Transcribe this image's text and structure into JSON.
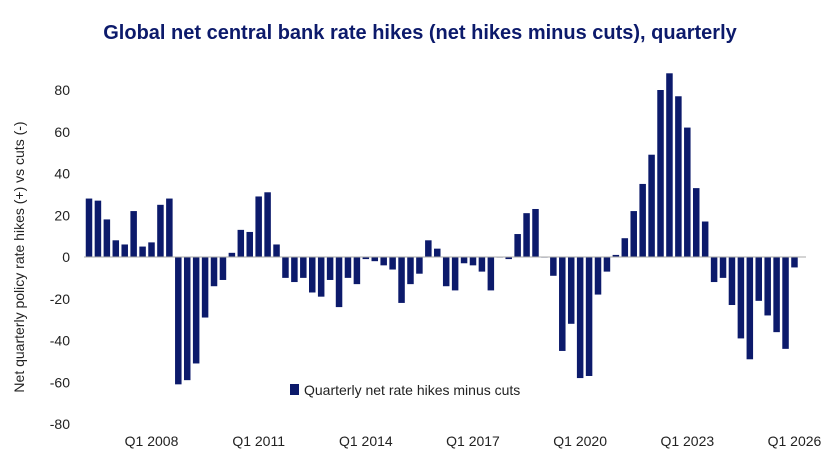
{
  "chart_data": {
    "type": "bar",
    "title": "Global net central bank rate hikes (net hikes minus cuts), quarterly",
    "ylabel": "Net quarterly policy rate hikes (+) vs cuts (-)",
    "xlabel": "",
    "ylim": [
      -80,
      80
    ],
    "yticks": [
      -80,
      -60,
      -40,
      -20,
      0,
      20,
      40,
      60,
      80
    ],
    "first_quarter": "Q2 2006",
    "last_quarter": "Q1 2026",
    "xtick_labels": [
      "Q1 2008",
      "Q1 2011",
      "Q1 2014",
      "Q1 2017",
      "Q1 2020",
      "Q1 2023",
      "Q1 2026"
    ],
    "grid": false,
    "legend_position": "bottom-center",
    "series": [
      {
        "name": "Quarterly net rate hikes minus cuts",
        "color": "#0c1a6b",
        "values": [
          28,
          27,
          18,
          8,
          6,
          22,
          5,
          7,
          25,
          28,
          -61,
          -59,
          -51,
          -29,
          -14,
          -11,
          2,
          13,
          12,
          29,
          31,
          6,
          -10,
          -12,
          -10,
          -17,
          -19,
          -11,
          -24,
          -10,
          -13,
          -1,
          -2,
          -4,
          -6,
          -22,
          -13,
          -8,
          8,
          4,
          -14,
          -16,
          -3,
          -4,
          -7,
          -16,
          0,
          -1,
          11,
          21,
          23,
          0,
          -9,
          -45,
          -32,
          -58,
          -57,
          -18,
          -7,
          1,
          9,
          22,
          35,
          49,
          80,
          88,
          77,
          62,
          33,
          17,
          -12,
          -10,
          -23,
          -39,
          -49,
          -21,
          -28,
          -36,
          -44,
          -5
        ]
      }
    ]
  }
}
